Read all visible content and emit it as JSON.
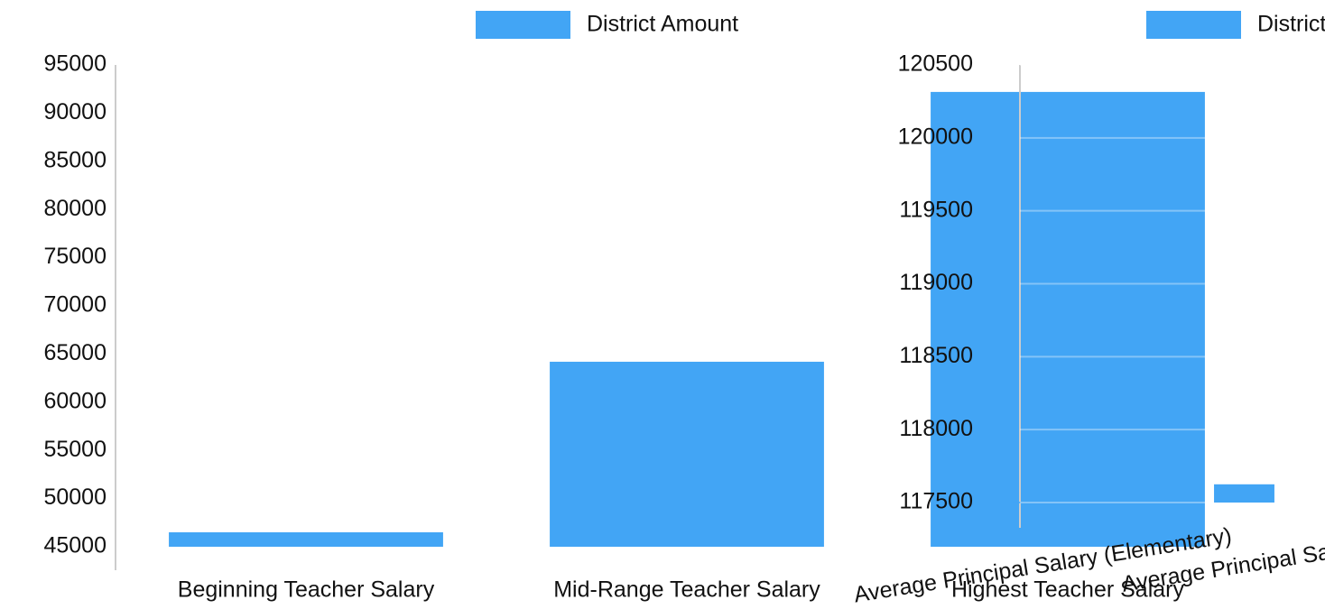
{
  "chart_data": [
    {
      "type": "bar",
      "series": [
        {
          "name": "District Amount",
          "color": "#42a5f5",
          "values": [
            46500,
            64200,
            92200
          ]
        }
      ],
      "categories": [
        "Beginning Teacher Salary",
        "Mid-Range Teacher Salary",
        "Highest Teacher Salary"
      ],
      "ylim": [
        45000,
        95000
      ],
      "yticks": [
        45000,
        50000,
        55000,
        60000,
        65000,
        70000,
        75000,
        80000,
        85000,
        90000,
        95000
      ]
    },
    {
      "type": "bar",
      "series": [
        {
          "name": "District Amount",
          "color": "#42a5f5",
          "values": [
            117505,
            117625
          ]
        }
      ],
      "categories": [
        "Average Principal Salary (Elementary)",
        "Average Principal Salary"
      ],
      "ylim": [
        117500,
        120500
      ],
      "yticks": [
        117500,
        118000,
        118500,
        119000,
        119500,
        120000,
        120500
      ],
      "grid": true
    }
  ]
}
